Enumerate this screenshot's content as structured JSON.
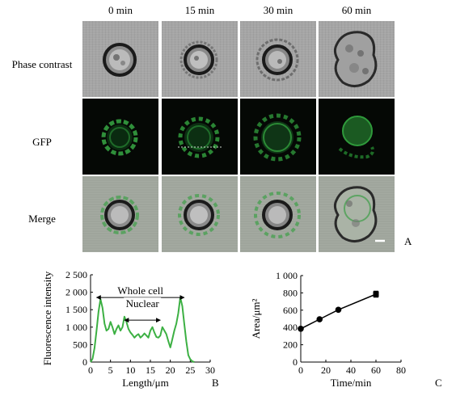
{
  "figure": {
    "columns": [
      "0 min",
      "15 min",
      "30 min",
      "60 min"
    ],
    "rows": [
      "Phase contrast",
      "GFP",
      "Merge"
    ],
    "panel_letters": {
      "a": "A",
      "b": "B",
      "c": "C"
    }
  },
  "chart_data": [
    {
      "type": "line",
      "panel": "B",
      "xlabel": "Length/μm",
      "ylabel": "Fluorescence  intensity",
      "xlim": [
        0,
        30
      ],
      "ylim": [
        0,
        2500
      ],
      "xticks": [
        "0",
        "5",
        "10",
        "15",
        "20",
        "25",
        "30"
      ],
      "yticks": [
        "0",
        "500",
        "1 000",
        "1 500",
        "2 000",
        "2 500"
      ],
      "color": "#3cb043",
      "x": [
        0,
        0.5,
        1,
        1.5,
        2,
        2.5,
        3,
        3.5,
        4,
        4.5,
        5,
        5.5,
        6,
        6.5,
        7,
        7.5,
        8,
        8.5,
        9,
        9.5,
        10,
        10.5,
        11,
        11.5,
        12,
        12.5,
        13,
        13.5,
        14,
        14.5,
        15,
        15.5,
        16,
        16.5,
        17,
        17.5,
        18,
        18.5,
        19,
        19.5,
        20,
        20.5,
        21,
        21.5,
        22,
        22.5,
        23,
        23.5,
        24,
        24.5,
        25,
        25.5,
        26
      ],
      "y": [
        0,
        100,
        400,
        900,
        1450,
        1800,
        1550,
        1100,
        900,
        950,
        1150,
        1000,
        800,
        950,
        1050,
        900,
        1000,
        1300,
        1150,
        950,
        850,
        780,
        700,
        760,
        800,
        700,
        750,
        820,
        760,
        700,
        900,
        1000,
        850,
        720,
        700,
        760,
        1000,
        900,
        800,
        600,
        420,
        650,
        900,
        1100,
        1400,
        1850,
        1600,
        1100,
        600,
        200,
        80,
        20,
        0
      ],
      "annotations": [
        {
          "text": "Whole cell",
          "from": 1.5,
          "to": 23.5,
          "y": 1850
        },
        {
          "text": "Nuclear",
          "from": 8.5,
          "to": 17.5,
          "y": 1200
        }
      ]
    },
    {
      "type": "line",
      "panel": "C",
      "xlabel": "Time/min",
      "ylabel": "Area/μm²",
      "xlim": [
        0,
        80
      ],
      "ylim": [
        0,
        1000
      ],
      "xticks": [
        "0",
        "20",
        "40",
        "60",
        "80"
      ],
      "yticks": [
        "0",
        "200",
        "400",
        "600",
        "800",
        "1 000"
      ],
      "x": [
        0,
        15,
        30,
        60
      ],
      "y": [
        385,
        495,
        605,
        785
      ],
      "yerr": [
        15,
        12,
        12,
        35
      ],
      "color": "#000000"
    }
  ]
}
